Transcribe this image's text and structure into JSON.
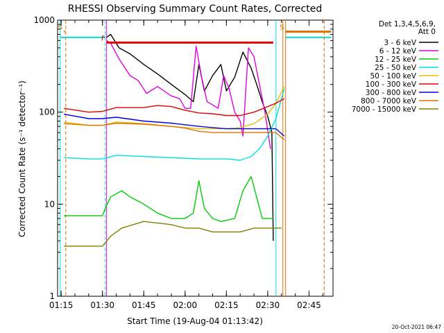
{
  "chart_data": {
    "type": "line",
    "title": "RHESSI Observing Summary Count Rates, Corrected",
    "xlabel": "Start Time (19-Aug-04 01:13:42)",
    "ylabel": "Corrected Count Rate (s⁻¹ detector⁻¹)",
    "y_scale": "log",
    "ylim": [
      1,
      1000
    ],
    "xlim": [
      "01:13:42",
      "02:53:42"
    ],
    "x_ticks": [
      "01:15",
      "01:30",
      "01:45",
      "02:00",
      "02:15",
      "02:30",
      "02:45"
    ],
    "y_ticks": [
      "1",
      "10",
      "100",
      "1000"
    ],
    "grid": false,
    "legend_position": "right",
    "legend_header": [
      "Det 1,3,4,5,6,9,",
      "Att 0"
    ],
    "timestamp": "20-Oct-2021 06:47",
    "series": [
      {
        "name": "3 - 6 keV",
        "color": "#000000",
        "x": [
          "01:31:30",
          "01:33",
          "01:36",
          "01:40",
          "01:45",
          "01:50",
          "01:55",
          "02:00",
          "02:03",
          "02:05",
          "02:07",
          "02:10",
          "02:13",
          "02:15",
          "02:18",
          "02:21",
          "02:24",
          "02:26",
          "02:28",
          "02:30",
          "02:31:30",
          "02:32"
        ],
        "y": [
          650,
          700,
          500,
          430,
          330,
          260,
          200,
          155,
          130,
          330,
          170,
          250,
          330,
          170,
          240,
          450,
          300,
          200,
          130,
          90,
          60,
          4
        ]
      },
      {
        "name": "6 - 12 keV",
        "color": "#e000e0",
        "x": [
          "01:31:30",
          "01:33",
          "01:36",
          "01:40",
          "01:43",
          "01:46",
          "01:50",
          "01:55",
          "01:58",
          "02:00",
          "02:02",
          "02:04",
          "02:06",
          "02:08",
          "02:10",
          "02:12",
          "02:14",
          "02:16",
          "02:18",
          "02:20",
          "02:21",
          "02:23",
          "02:25",
          "02:27",
          "02:29",
          "02:31"
        ],
        "y": [
          600,
          560,
          380,
          250,
          220,
          160,
          190,
          150,
          140,
          110,
          110,
          520,
          240,
          130,
          120,
          110,
          250,
          180,
          100,
          80,
          55,
          500,
          400,
          200,
          100,
          40
        ]
      },
      {
        "name": "12 - 25 keV",
        "color": "#00cc00",
        "x": [
          "01:16",
          "01:25",
          "01:30",
          "01:31",
          "01:33",
          "01:37",
          "01:40",
          "01:45",
          "01:50",
          "01:55",
          "02:00",
          "02:03",
          "02:05",
          "02:07",
          "02:10",
          "02:13",
          "02:18",
          "02:21",
          "02:24",
          "02:28",
          "02:32"
        ],
        "y": [
          7.5,
          7.5,
          7.5,
          9,
          12,
          14,
          12,
          10,
          8,
          7,
          7,
          8,
          18,
          9,
          7,
          6.5,
          7,
          14,
          20,
          7,
          7
        ]
      },
      {
        "name": "25 - 50 keV",
        "color": "#00e0e0",
        "x": [
          "01:16",
          "01:25",
          "01:30",
          "01:35",
          "01:45",
          "01:55",
          "02:05",
          "02:15",
          "02:20",
          "02:24",
          "02:27",
          "02:30",
          "02:33",
          "02:36"
        ],
        "y": [
          32,
          31,
          31,
          34,
          33,
          32,
          31,
          31,
          30,
          33,
          40,
          55,
          85,
          180
        ]
      },
      {
        "name": "50 - 100 keV",
        "color": "#e0c000",
        "x": [
          "01:16",
          "01:25",
          "01:30",
          "01:35",
          "01:45",
          "01:55",
          "02:05",
          "02:15",
          "02:20",
          "02:25",
          "02:30",
          "02:33",
          "02:36"
        ],
        "y": [
          78,
          72,
          72,
          78,
          75,
          70,
          66,
          66,
          68,
          75,
          95,
          125,
          190
        ]
      },
      {
        "name": "100 - 300 keV",
        "color": "#e00000",
        "x": [
          "01:16",
          "01:25",
          "01:30",
          "01:35",
          "01:45",
          "01:50",
          "01:55",
          "02:00",
          "02:05",
          "02:10",
          "02:15",
          "02:20",
          "02:25",
          "02:30",
          "02:33",
          "02:36"
        ],
        "y": [
          110,
          100,
          102,
          112,
          112,
          118,
          115,
          105,
          98,
          96,
          92,
          92,
          100,
          115,
          125,
          140
        ]
      },
      {
        "name": "300 - 800 keV",
        "color": "#0000e0",
        "x": [
          "01:16",
          "01:25",
          "01:30",
          "01:35",
          "01:45",
          "01:55",
          "02:00",
          "02:05",
          "02:10",
          "02:15",
          "02:20",
          "02:25",
          "02:30",
          "02:33",
          "02:36"
        ],
        "y": [
          95,
          85,
          85,
          88,
          80,
          76,
          73,
          70,
          68,
          66,
          66,
          66,
          66,
          66,
          55
        ]
      },
      {
        "name": "800 - 7000 keV",
        "color": "#e07000",
        "x": [
          "01:16",
          "01:25",
          "01:30",
          "01:35",
          "01:45",
          "01:55",
          "02:00",
          "02:05",
          "02:10",
          "02:15",
          "02:20",
          "02:25",
          "02:30",
          "02:33",
          "02:36"
        ],
        "y": [
          75,
          72,
          72,
          76,
          74,
          70,
          67,
          62,
          60,
          60,
          60,
          60,
          60,
          60,
          50
        ]
      },
      {
        "name": "7000 - 15000 keV",
        "color": "#808000",
        "x": [
          "01:16",
          "01:25",
          "01:30",
          "01:33",
          "01:37",
          "01:45",
          "01:55",
          "02:00",
          "02:05",
          "02:10",
          "02:15",
          "02:20",
          "02:25",
          "02:30",
          "02:33",
          "02:35"
        ],
        "y": [
          3.5,
          3.5,
          3.5,
          4.5,
          5.5,
          6.5,
          6,
          5.5,
          5.5,
          5,
          5,
          5,
          5.5,
          5.5,
          5.5,
          5.5
        ]
      }
    ],
    "annotations": [
      {
        "label": "S",
        "color": "#e07000",
        "start": "01:16:00",
        "end": "01:16:20",
        "y": 750
      },
      {
        "label": "S",
        "color": "#e07000",
        "start": "02:36:30",
        "end": "02:53:00",
        "y": 750
      },
      {
        "label": "F",
        "color": "#e00000",
        "start": "01:31:30",
        "end": "02:32:00",
        "y": 570
      }
    ],
    "vertical_markers": [
      {
        "time": "01:14:40",
        "color": "#00e0e0",
        "style": "solid"
      },
      {
        "time": "01:31:00",
        "color": "#00e0e0",
        "style": "dashed"
      },
      {
        "time": "01:31:30",
        "color": "#e000e0",
        "style": "solid"
      },
      {
        "time": "02:33:00",
        "color": "#00e0e0",
        "style": "solid"
      },
      {
        "time": "02:35:30",
        "color": "#e07000",
        "style": "solid"
      },
      {
        "time": "02:36:30",
        "color": "#e07000",
        "style": "solid"
      },
      {
        "time": "01:16:40",
        "color": "#e07000",
        "style": "dashed"
      },
      {
        "time": "02:50:30",
        "color": "#e07000",
        "style": "dashed"
      }
    ],
    "background_band": {
      "color": "#00e0e0",
      "start": "01:14:40",
      "end": "01:31:00",
      "y": 650
    },
    "background_band_2": {
      "color": "#00e0e0",
      "start": "02:36:30",
      "end": "02:53:00",
      "y": 650
    }
  }
}
